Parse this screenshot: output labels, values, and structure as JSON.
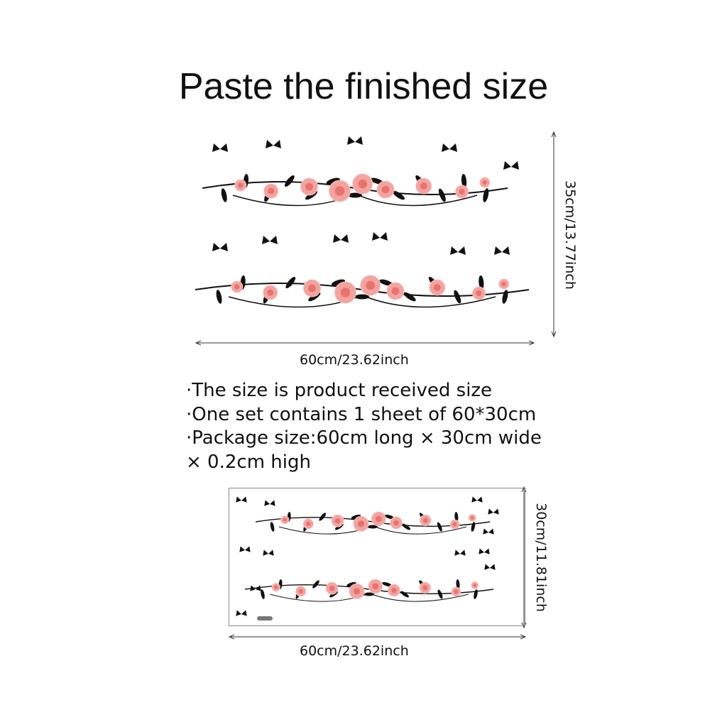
{
  "title": "Paste the finished size",
  "finished_size": {
    "width_label": "60cm/23.62inch",
    "height_label": "35cm/13.77inch"
  },
  "info_lines": [
    "·The size is product received size",
    "·One set contains 1 sheet of 60*30cm",
    "·Package size:60cm long × 30cm wide",
    "× 0.2cm high"
  ],
  "sheet_size": {
    "width_label": "60cm/23.62inch",
    "height_label": "30cm/11.81inch"
  },
  "colors": {
    "rose": "#f4a3a0",
    "rose_center": "#e9736d",
    "foliage": "#111111",
    "sheet_border": "#888888"
  }
}
